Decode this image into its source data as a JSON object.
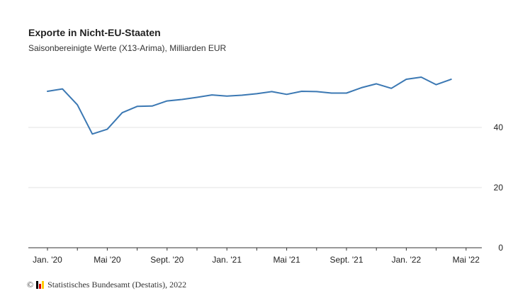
{
  "chart_data": {
    "type": "line",
    "title": "Exporte in Nicht-EU-Staaten",
    "subtitle": "Saisonbereinigte Werte (X13-Arima), Milliarden EUR",
    "x": [
      "2020-01",
      "2020-02",
      "2020-03",
      "2020-04",
      "2020-05",
      "2020-06",
      "2020-07",
      "2020-08",
      "2020-09",
      "2020-10",
      "2020-11",
      "2020-12",
      "2021-01",
      "2021-02",
      "2021-03",
      "2021-04",
      "2021-05",
      "2021-06",
      "2021-07",
      "2021-08",
      "2021-09",
      "2021-10",
      "2021-11",
      "2021-12",
      "2022-01",
      "2022-02",
      "2022-03",
      "2022-04"
    ],
    "series": [
      {
        "values": [
          52.0,
          52.8,
          47.5,
          37.8,
          39.4,
          44.9,
          47.0,
          47.1,
          48.8,
          49.3,
          50.0,
          50.8,
          50.4,
          50.7,
          51.2,
          51.9,
          51.0,
          52.0,
          51.9,
          51.4,
          51.4,
          53.2,
          54.5,
          53.0,
          56.0,
          56.7,
          54.2,
          56.0
        ],
        "color": "#3b78b3"
      }
    ],
    "xticks": [
      "Jan. '20",
      "Mai '20",
      "Sept. '20",
      "Jan. '21",
      "Mai '21",
      "Sept. '21",
      "Jan. '22",
      "Mai '22"
    ],
    "xtick_months": [
      "2020-01",
      "2020-05",
      "2020-09",
      "2021-01",
      "2021-05",
      "2021-09",
      "2022-01",
      "2022-05"
    ],
    "yticks": [
      0,
      20,
      40
    ],
    "ylim": [
      0,
      60
    ],
    "grid": true,
    "axis_color": "#333333",
    "grid_color": "#e3e3e3"
  },
  "footer": {
    "copyright_symbol": "©",
    "source": "Statistisches Bundesamt (Destatis), 2022"
  },
  "logo_colors": [
    "#000000",
    "#dd0000",
    "#ffcc00"
  ]
}
